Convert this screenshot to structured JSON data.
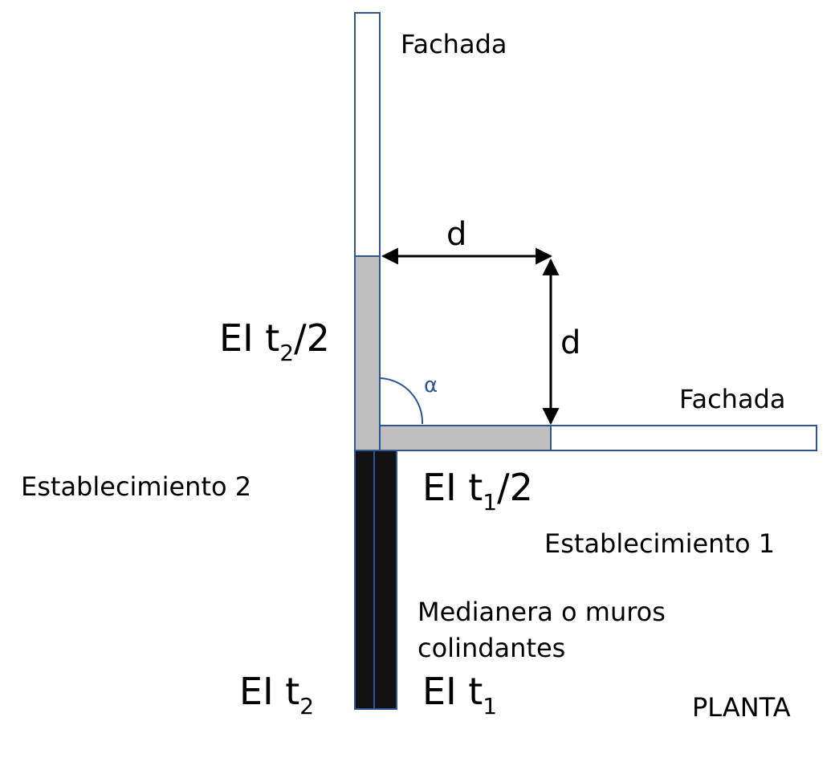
{
  "labels": {
    "fachada_top": "Fachada",
    "fachada_right": "Fachada",
    "d_horizontal": "d",
    "d_vertical": "d",
    "alpha": "α",
    "establecimiento_2": "Establecimiento 2",
    "establecimiento_1": "Establecimiento 1",
    "medianera_line1": "Medianera o muros",
    "medianera_line2": "colindantes",
    "planta": "PLANTA",
    "ei_t2_half": {
      "prefix": "EI t",
      "sub": "2",
      "suffix": "/2"
    },
    "ei_t1_half": {
      "prefix": "EI t",
      "sub": "1",
      "suffix": "/2"
    },
    "ei_t2": {
      "prefix": "EI t",
      "sub": "2"
    },
    "ei_t1": {
      "prefix": "EI t",
      "sub": "1"
    }
  },
  "colors": {
    "wall_outline": "#2f5496",
    "fire_zone_fill": "#bfbfbf",
    "medianera_fill": "#111111",
    "arrow": "#000000",
    "alpha_arc": "#2f5496",
    "text": "#000000"
  }
}
